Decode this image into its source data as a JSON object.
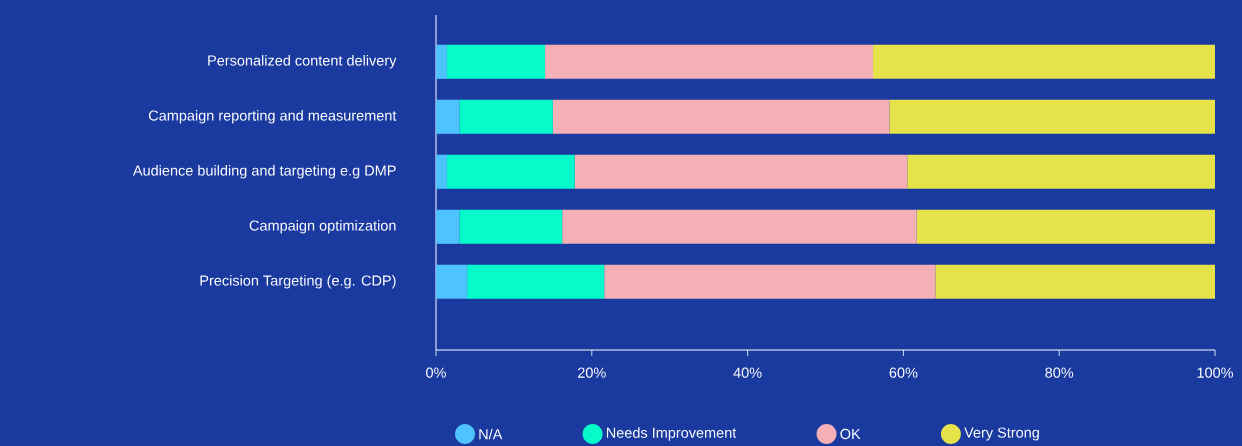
{
  "chart_data": {
    "type": "bar",
    "orientation": "horizontal",
    "stacked": true,
    "categories": [
      "Personalized content delivery",
      "Campaign reporting and measurement",
      "Audience building and targeting e.g DMP",
      "Campaign optimization",
      "Precision Targeting (e.g. CDP)"
    ],
    "series": [
      {
        "name": "N/A",
        "color": "#4fc3ff",
        "values": [
          1.4,
          3,
          1.4,
          3,
          4
        ]
      },
      {
        "name": "Needs Improvement",
        "color": "#05fbc9",
        "values": [
          12.6,
          12,
          16.4,
          13.2,
          17.6
        ]
      },
      {
        "name": "OK",
        "color": "#f4b0b6",
        "values": [
          42.1,
          43.2,
          42.7,
          45.5,
          42.5
        ]
      },
      {
        "name": "Very Strong",
        "color": "#e6e24a",
        "values": [
          43.9,
          41.8,
          39.5,
          38.3,
          35.9
        ]
      }
    ],
    "xlim": [
      0,
      100
    ],
    "xticks": [
      {
        "value": 0,
        "label": "0%"
      },
      {
        "value": 20,
        "label": "20%"
      },
      {
        "value": 40,
        "label": "40%"
      },
      {
        "value": 60,
        "label": "60%"
      },
      {
        "value": 80,
        "label": "80%"
      },
      {
        "value": 100,
        "label": "100%"
      }
    ],
    "grid": false,
    "legend": "bottom"
  }
}
